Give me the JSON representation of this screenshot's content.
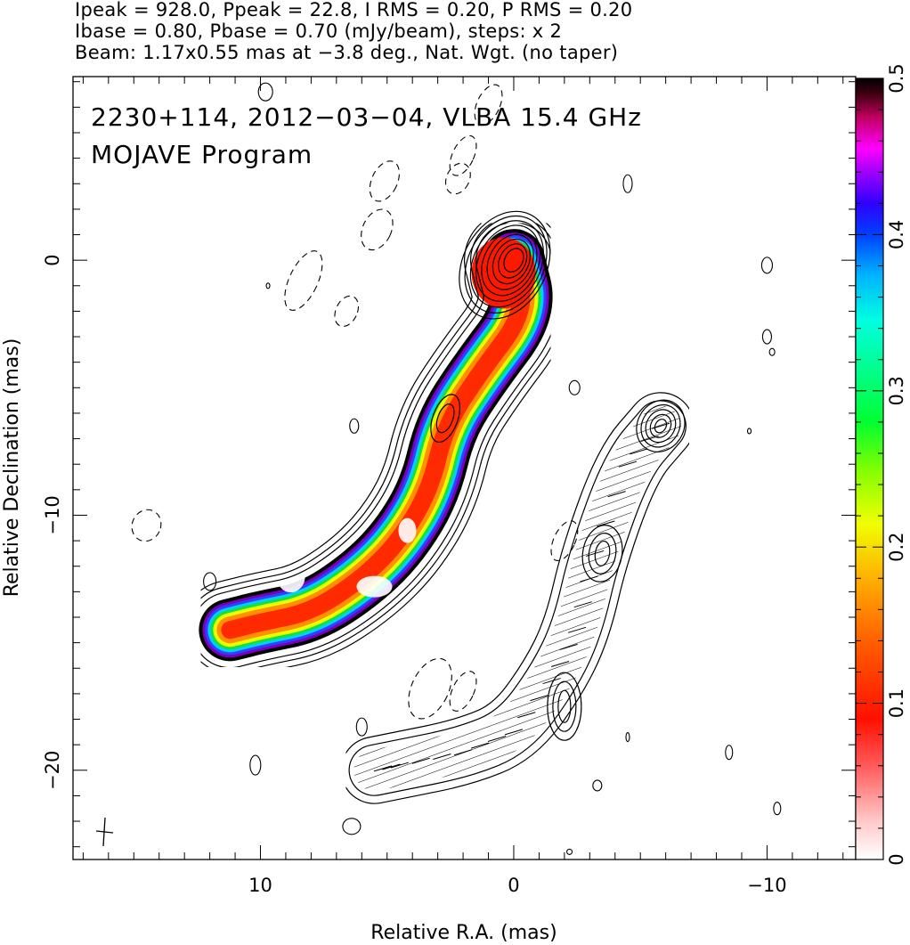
{
  "header": {
    "line1": "Ipeak = 928.0, Ppeak = 22.8, I RMS = 0.20, P RMS = 0.20",
    "line2": "Ibase = 0.80, Pbase = 0.70 (mJy/beam), steps: x 2",
    "line3": "Beam: 1.17x0.55 mas at −3.8 deg., Nat. Wgt. (no taper)"
  },
  "chart_data": {
    "type": "heatmap",
    "title": "2230+114, 2012−03−04, VLBA 15.4 GHz",
    "subtitle": "MOJAVE Program",
    "xlabel": "Relative R.A. (mas)",
    "ylabel": "Relative Declination (mas)",
    "xlim": [
      17.4,
      -13.5
    ],
    "ylim": [
      -23.5,
      7.2
    ],
    "x_ticks": [
      10,
      0,
      -10
    ],
    "x_tick_labels": [
      "10",
      "0",
      "−10"
    ],
    "y_ticks": [
      0,
      -10,
      -20
    ],
    "y_tick_labels": [
      "0",
      "−10",
      "−20"
    ],
    "colorbar": {
      "min": 0,
      "max": 0.5,
      "ticks": [
        0,
        0.1,
        0.2,
        0.3,
        0.4,
        0.5
      ],
      "tick_labels": [
        "0",
        "0.1",
        "0.2",
        "0.3",
        "0.4",
        "0.5"
      ]
    },
    "core_position": [
      0,
      0
    ],
    "jet_ridge": [
      [
        0,
        0
      ],
      [
        -0.5,
        -2
      ],
      [
        1.4,
        -4.5
      ],
      [
        2.7,
        -6.5
      ],
      [
        3.3,
        -9
      ],
      [
        4.5,
        -11
      ],
      [
        6,
        -12.5
      ],
      [
        8,
        -13.8
      ],
      [
        10,
        -14.2
      ],
      [
        11.2,
        -14.5
      ]
    ],
    "polarized_jet_ridge": [
      [
        -5.8,
        -6.5
      ],
      [
        -4.5,
        -8
      ],
      [
        -3.2,
        -11.5
      ],
      [
        -2.5,
        -14.5
      ],
      [
        -1.5,
        -16.5
      ],
      [
        0,
        -18.5
      ],
      [
        2,
        -19.3
      ],
      [
        4.5,
        -19.8
      ],
      [
        5.5,
        -20
      ]
    ]
  }
}
